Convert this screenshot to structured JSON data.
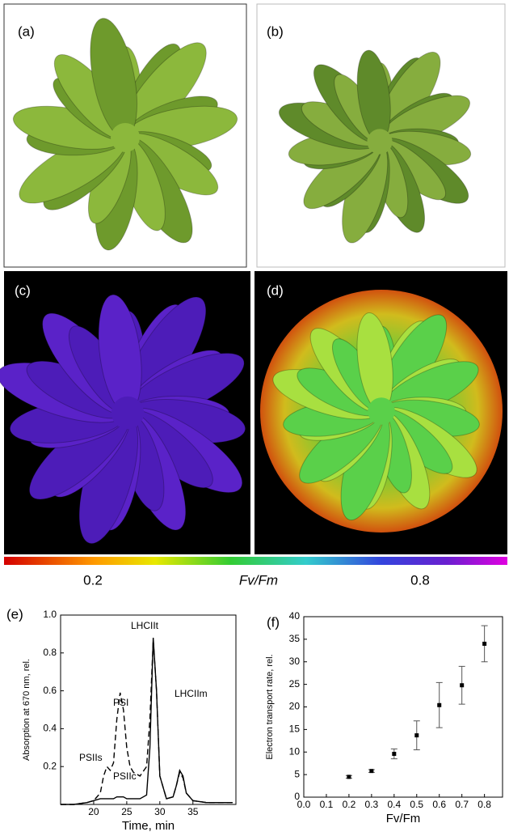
{
  "panels": [
    "(a)",
    "(b)",
    "(c)",
    "(d)",
    "(e)",
    "(f)"
  ],
  "colorbar": {
    "ticks": [
      0.2,
      0.8
    ],
    "label": "Fv/Fm"
  },
  "chart_data": [
    {
      "type": "line",
      "xlabel": "Time, min",
      "ylabel": "Absorption at 670 nm, rel.",
      "x": [
        15,
        17,
        19,
        20,
        21,
        21.5,
        22,
        22.5,
        23,
        23.5,
        24,
        24.5,
        25,
        25.5,
        26,
        27,
        28,
        28.5,
        29,
        29.5,
        30,
        31,
        32,
        32.5,
        33,
        33.5,
        34,
        35,
        37,
        39,
        41
      ],
      "series": [
        {
          "color": "#000000",
          "dash": false,
          "values": [
            0,
            0,
            0.01,
            0.02,
            0.03,
            0.03,
            0.03,
            0.03,
            0.03,
            0.04,
            0.04,
            0.04,
            0.03,
            0.03,
            0.03,
            0.03,
            0.05,
            0.3,
            0.88,
            0.6,
            0.15,
            0.03,
            0.04,
            0.1,
            0.18,
            0.15,
            0.06,
            0.02,
            0.01,
            0.01,
            0.01
          ]
        },
        {
          "color": "#000000",
          "dash": true,
          "values": [
            0,
            0,
            0.01,
            0.02,
            0.06,
            0.15,
            0.2,
            0.18,
            0.22,
            0.45,
            0.59,
            0.5,
            0.3,
            0.2,
            0.17,
            0.15,
            0.2,
            0.45,
            0.87,
            0.6,
            0.15,
            0.03,
            0.04,
            0.1,
            0.17,
            0.14,
            0.06,
            0.02,
            0.01,
            0.01,
            0.01
          ]
        }
      ],
      "annotations": [
        "PSIIs",
        "PSI",
        "PSIIc",
        "LHCIIt",
        "LHCIIm"
      ],
      "xlim": [
        15,
        41.5
      ],
      "xticks": [
        20,
        25,
        30,
        35
      ],
      "ylim": [
        0,
        1.0
      ],
      "yticks": [
        0.2,
        0.4,
        0.6,
        0.8,
        {
          "value": 1.0,
          "label": "1.0"
        }
      ]
    },
    {
      "type": "scatter",
      "xlabel": "Fv/Fm",
      "ylabel": "Electron transport rate, rel.",
      "color": "#000000",
      "x": [
        0.2,
        0.3,
        0.4,
        0.5,
        0.6,
        0.7,
        0.8
      ],
      "values": [
        4.5,
        5.8,
        9.6,
        13.7,
        20.4,
        24.8,
        34
      ],
      "errors": [
        0.3,
        0.3,
        1.1,
        3.2,
        5,
        4.2,
        4
      ],
      "xlim": [
        0,
        0.88
      ],
      "xticks": [
        {
          "value": 0,
          "label": "0.0"
        },
        0.1,
        0.2,
        0.3,
        0.4,
        0.5,
        0.6,
        0.7,
        0.8
      ],
      "ylim": [
        0,
        40
      ],
      "yticks": [
        0,
        5,
        10,
        15,
        20,
        25,
        30,
        35,
        40
      ]
    }
  ]
}
